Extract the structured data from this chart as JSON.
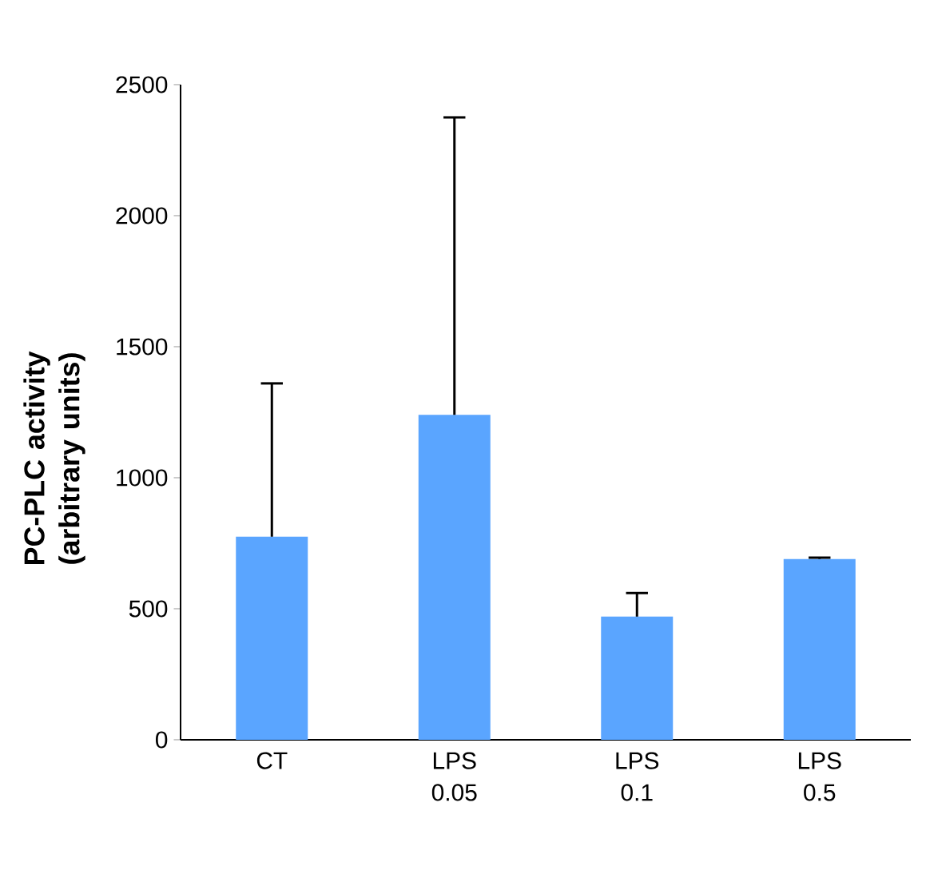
{
  "chart_data": {
    "type": "bar",
    "ylabel": "PC-PLC activity (arbitrary units)",
    "categories": [
      "CT",
      "LPS 0.05",
      "LPS 0.1",
      "LPS 0.5"
    ],
    "values": [
      775,
      1240,
      470,
      690
    ],
    "errors": [
      [
        775,
        1360
      ],
      [
        1240,
        2375
      ],
      [
        470,
        560
      ],
      [
        690,
        695
      ]
    ],
    "color": "#5aa5ff",
    "ylim": [
      0,
      2500
    ],
    "yticks": [
      0,
      500,
      1000,
      1500,
      2000,
      2500
    ]
  }
}
